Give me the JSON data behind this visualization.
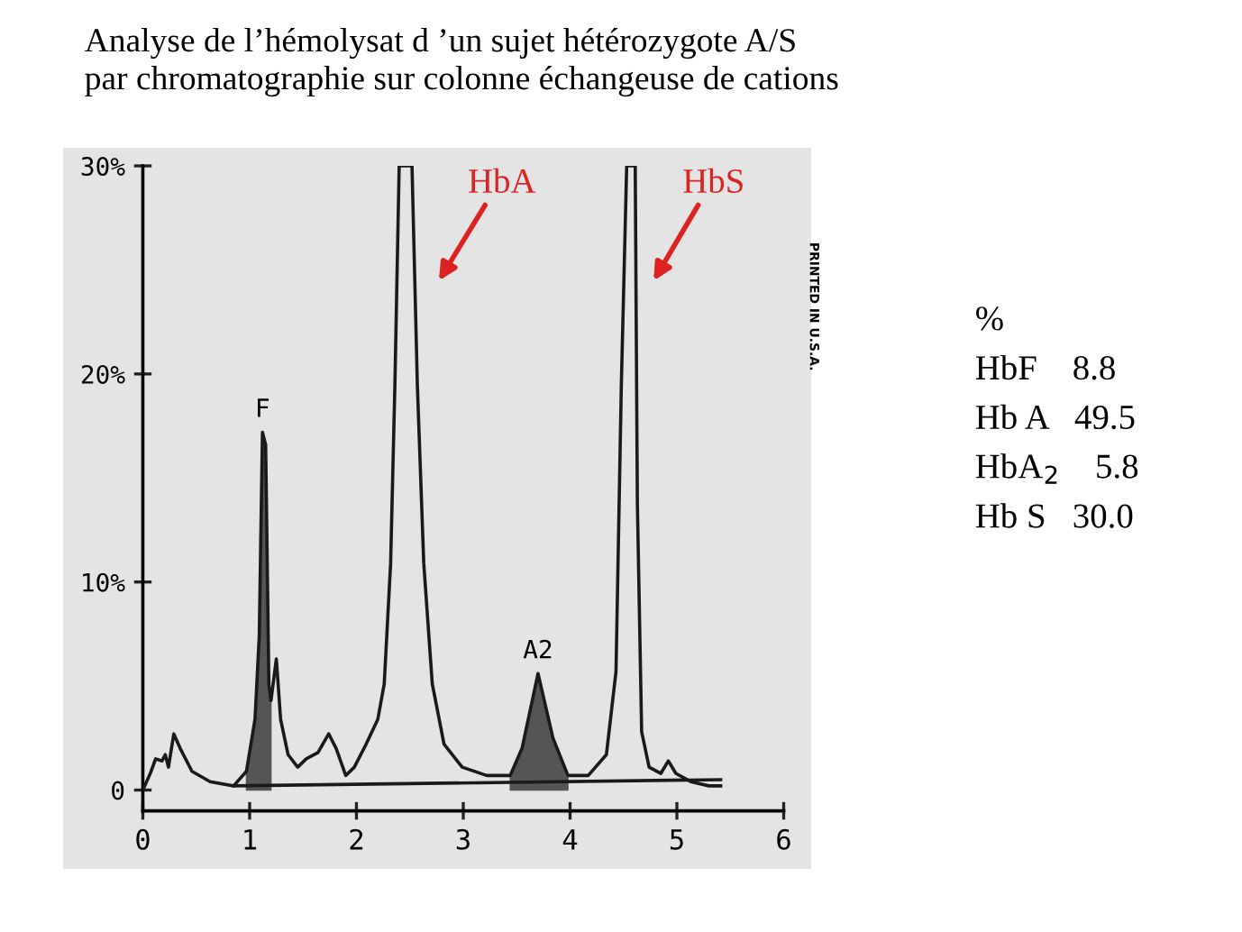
{
  "chart_data": {
    "type": "line",
    "title": "Analyse de l’hémolysat d ’un sujet hétérozygote A/S\npar chromatographie sur colonne échangeuse de cations",
    "xlim": [
      0,
      6
    ],
    "xticks": [
      0,
      1,
      2,
      3,
      4,
      5,
      6
    ],
    "ylim": [
      -1,
      30
    ],
    "yticks": [
      {
        "value": 0,
        "label": "0"
      },
      {
        "value": 10,
        "label": "10%"
      },
      {
        "value": 20,
        "label": "20%"
      },
      {
        "value": 30,
        "label": "30%"
      }
    ],
    "grid": false,
    "legend": false,
    "marker": "none",
    "line_style": "solid",
    "series": [
      {
        "color": "#1a1a1a",
        "x": [
          0,
          0.07,
          0.12,
          0.18,
          0.21,
          0.24,
          0.29,
          0.35,
          0.46,
          0.63,
          0.85,
          0.97,
          1.05,
          1.09,
          1.12,
          1.15,
          1.18,
          1.2,
          1.25,
          1.29,
          1.36,
          1.45,
          1.53,
          1.64,
          1.74,
          1.81,
          1.9,
          1.98,
          2.09,
          2.2,
          2.26,
          2.32,
          2.36,
          2.4,
          2.52,
          2.57,
          2.63,
          2.71,
          2.82,
          2.99,
          3.22,
          3.44,
          3.55,
          3.7,
          3.84,
          3.98,
          4.17,
          4.34,
          4.43,
          4.48,
          4.53,
          4.61,
          4.63,
          4.67,
          4.74,
          4.85,
          4.92,
          4.99,
          5.13,
          5.3,
          5.41
        ],
        "values": [
          0,
          0.8,
          1.5,
          1.4,
          1.7,
          1.1,
          2.7,
          2.0,
          0.9,
          0.4,
          0.2,
          0.9,
          3.4,
          7.4,
          17.2,
          16.6,
          5.1,
          4.3,
          6.3,
          3.4,
          1.7,
          1.1,
          1.5,
          1.8,
          2.7,
          2.0,
          0.7,
          1.1,
          2.2,
          3.4,
          5.1,
          10.9,
          19.5,
          30,
          30,
          19.5,
          10.9,
          5.1,
          2.2,
          1.1,
          0.7,
          0.7,
          2.0,
          5.6,
          2.5,
          0.7,
          0.7,
          1.7,
          5.7,
          19.5,
          30,
          30,
          13.8,
          2.8,
          1.1,
          0.8,
          1.4,
          0.8,
          0.4,
          0.2,
          0.2
        ]
      },
      {
        "type": "area",
        "color": "#555555",
        "x": [
          0.97,
          1.05,
          1.09,
          1.12,
          1.15,
          1.18,
          1.2
        ],
        "values": [
          0.9,
          3.4,
          7.4,
          17.2,
          16.6,
          5.1,
          4.3
        ]
      },
      {
        "type": "area",
        "color": "#555555",
        "x": [
          3.44,
          3.55,
          3.7,
          3.84,
          3.98
        ],
        "values": [
          0.7,
          2.0,
          5.6,
          2.5,
          0.7
        ]
      },
      {
        "color": "#1a1a1a",
        "x": [
          0.85,
          5.41
        ],
        "values": [
          0.2,
          0.5
        ]
      }
    ],
    "annotations": [
      {
        "text": "F",
        "x": 1.12,
        "y": 17.2
      },
      {
        "text": "A2",
        "x": 3.7,
        "y": 5.6
      },
      "HbA",
      "HbS",
      "PRINTED IN U.S.A.",
      "%",
      "HbF    8.8",
      "Hb A   49.5",
      "HbA$_{2}$    5.8",
      "Hb S   30.0"
    ]
  }
}
